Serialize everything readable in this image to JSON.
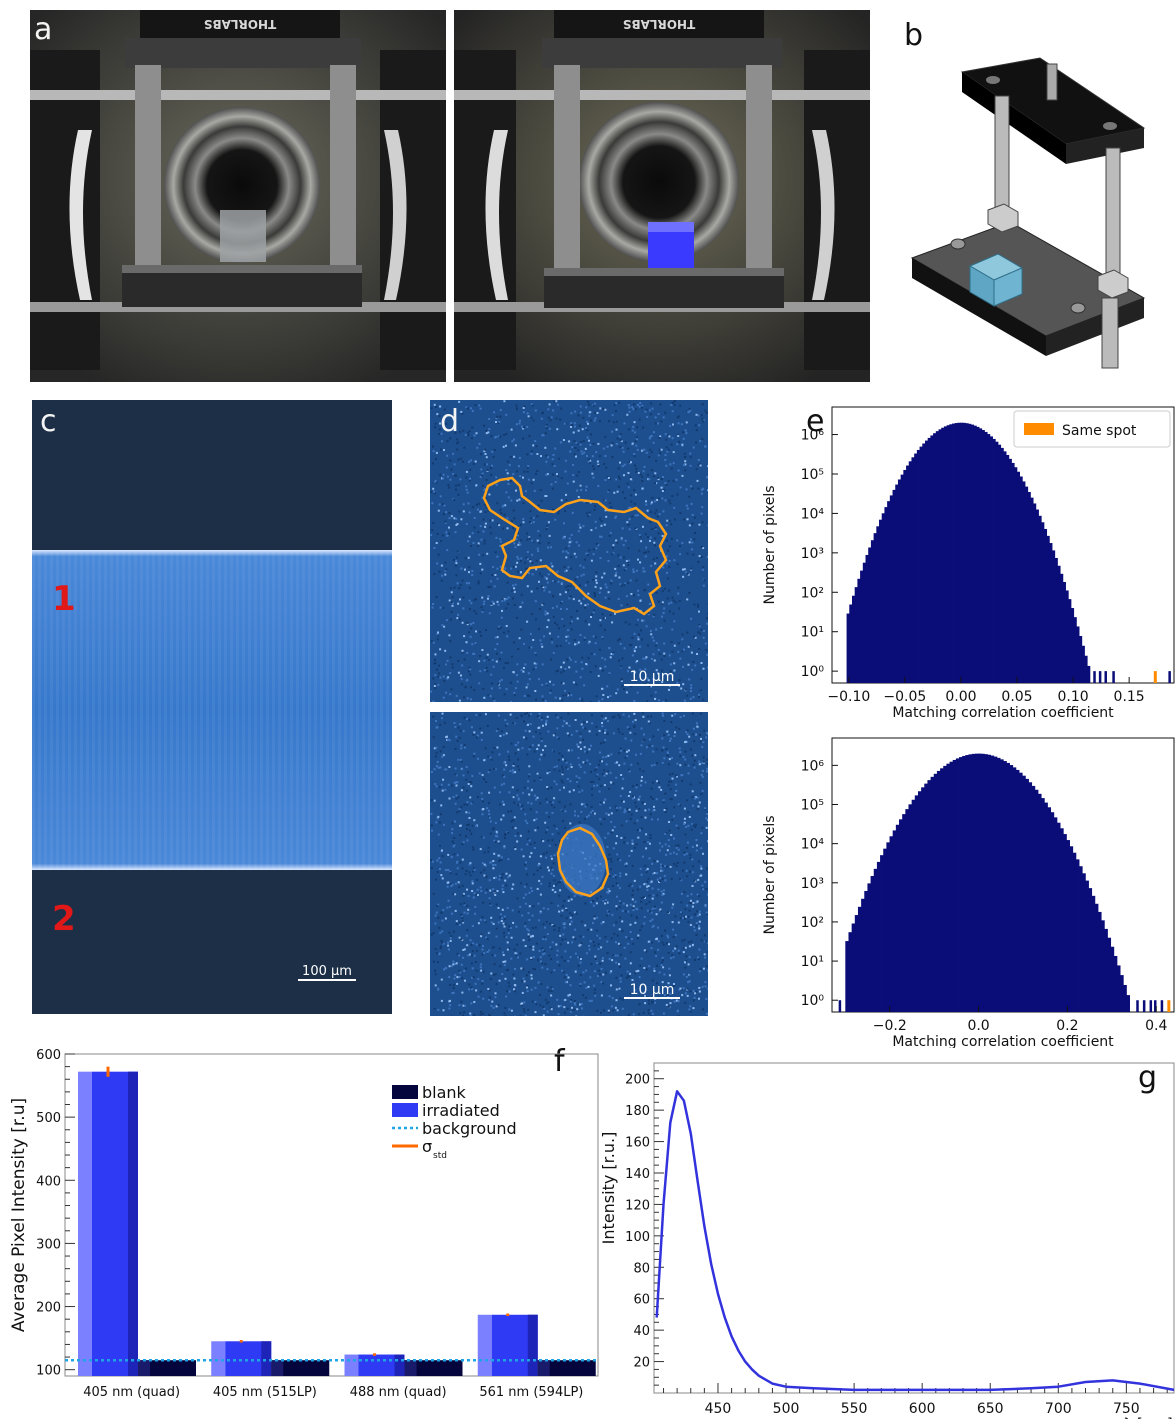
{
  "panel_labels": {
    "a": "a",
    "b": "b",
    "c": "c",
    "d": "d",
    "e": "e",
    "f": "f",
    "g": "g"
  },
  "panel_a": {
    "mount_label": "THORLABS"
  },
  "panel_c": {
    "region_1": "1",
    "region_2": "2",
    "scalebar": "100 µm"
  },
  "panel_d": {
    "scalebar_top": "10 μm",
    "scalebar_bottom": "10 μm"
  },
  "chart_data": [
    {
      "id": "e-top",
      "type": "bar",
      "ylabel": "Number of pixels",
      "xlabel": "Matching correlation coefficient",
      "yscale": "log",
      "ylim": [
        0.5,
        5000000
      ],
      "xlim": [
        -0.115,
        0.19
      ],
      "xticks": [
        "−0.10",
        "−0.05",
        "0.00",
        "0.05",
        "0.10",
        "0.15"
      ],
      "yticks": [
        "10⁰",
        "10¹",
        "10²",
        "10³",
        "10⁴",
        "10⁵",
        "10⁶"
      ],
      "legend": [
        "Same spot"
      ],
      "legend_position": "top-right",
      "distribution": {
        "center": 0.0,
        "peak": 2000000,
        "x_min": -0.102,
        "x_max": 0.115
      },
      "outliers": [
        0.118,
        0.123,
        0.128,
        0.135,
        0.185
      ],
      "same_spot": [
        0.172
      ],
      "colors": {
        "bars": "#0a0d78",
        "same_spot": "#ff8c00"
      }
    },
    {
      "id": "e-bottom",
      "type": "bar",
      "ylabel": "Number of pixels",
      "xlabel": "Matching correlation coefficient",
      "yscale": "log",
      "ylim": [
        0.5,
        5000000
      ],
      "xlim": [
        -0.33,
        0.44
      ],
      "xticks": [
        "−0.2",
        "0.0",
        "0.2",
        "0.4"
      ],
      "yticks": [
        "10⁰",
        "10¹",
        "10²",
        "10³",
        "10⁴",
        "10⁵",
        "10⁶"
      ],
      "distribution": {
        "center": 0.0,
        "peak": 2000000,
        "x_min": -0.3,
        "x_max": 0.34
      },
      "outliers": [
        -0.315,
        0.355,
        0.37,
        0.385,
        0.395,
        0.41
      ],
      "same_spot": [
        0.425
      ],
      "colors": {
        "bars": "#0a0d78",
        "same_spot": "#ff8c00"
      }
    },
    {
      "id": "f",
      "type": "bar",
      "ylabel": "Average Pixel Intensity [r.u]",
      "ylim": [
        90,
        600
      ],
      "yticks": [
        100,
        200,
        300,
        400,
        500,
        600
      ],
      "categories": [
        "405 nm (quad)",
        "405 nm (515LP)",
        "488 nm (quad)",
        "561 nm (594LP)"
      ],
      "series": [
        {
          "name": "blank",
          "values": [
            115,
            115,
            115,
            115
          ]
        },
        {
          "name": "irradiated",
          "values": [
            572,
            145,
            124,
            187
          ]
        }
      ],
      "errors": [
        8,
        2,
        2,
        2
      ],
      "background": 115,
      "legend": [
        "blank",
        "irradiated",
        "background",
        "σ",
        "std"
      ],
      "legend_position": "top-right",
      "colors": {
        "blank": "#05053d",
        "irradiated": "#2f3af5",
        "background": "#1ea5e6",
        "sigma": "#ff6a00"
      }
    },
    {
      "id": "g",
      "type": "line",
      "ylabel": "Intensity [r.u.]",
      "xlabel": "λ [nm]",
      "xlim": [
        403,
        785
      ],
      "ylim": [
        0,
        210
      ],
      "xticks": [
        450,
        500,
        550,
        600,
        650,
        700,
        750
      ],
      "yticks": [
        20,
        40,
        60,
        80,
        100,
        120,
        140,
        160,
        180,
        200
      ],
      "x": [
        405,
        410,
        415,
        420,
        425,
        430,
        435,
        440,
        445,
        450,
        455,
        460,
        465,
        470,
        475,
        480,
        490,
        500,
        520,
        550,
        600,
        650,
        680,
        700,
        720,
        740,
        760,
        785
      ],
      "y": [
        48,
        120,
        172,
        192,
        186,
        165,
        135,
        106,
        82,
        63,
        48,
        36,
        27,
        20,
        15,
        11,
        6,
        4,
        3,
        2,
        2,
        2,
        3,
        4,
        7,
        8,
        6,
        2
      ],
      "colors": {
        "line": "#3333dd"
      }
    }
  ]
}
